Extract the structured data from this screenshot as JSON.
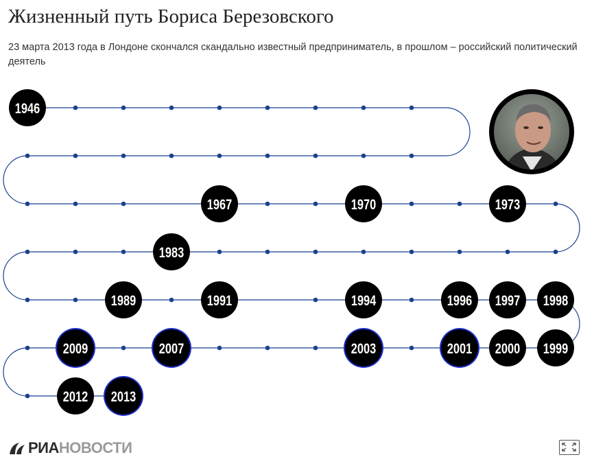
{
  "header": {
    "title": "Жизненный путь Бориса Березовского",
    "subtitle": "23 марта 2013 года в Лондоне скончался скандально известный предприниматель, в прошлом – российский политический деятель"
  },
  "timeline": {
    "years": [
      "1946",
      "1967",
      "1970",
      "1973",
      "1983",
      "1989",
      "1991",
      "1994",
      "1996",
      "1997",
      "1998",
      "1999",
      "2000",
      "2001",
      "2003",
      "2007",
      "2009",
      "2012",
      "2013"
    ],
    "highlighted_years": [
      "2001",
      "2003",
      "2007",
      "2009",
      "2013"
    ],
    "colors": {
      "line": "#1a3f8f",
      "node": "#000000",
      "highlight_ring": "#1e2fc8",
      "year_text": "#ffffff"
    }
  },
  "portrait": {
    "icon": "portrait-photo"
  },
  "footer": {
    "logo_ria": "РИА",
    "logo_novosti": "НОВОСТИ",
    "fullscreen_icon": "fullscreen-icon"
  }
}
